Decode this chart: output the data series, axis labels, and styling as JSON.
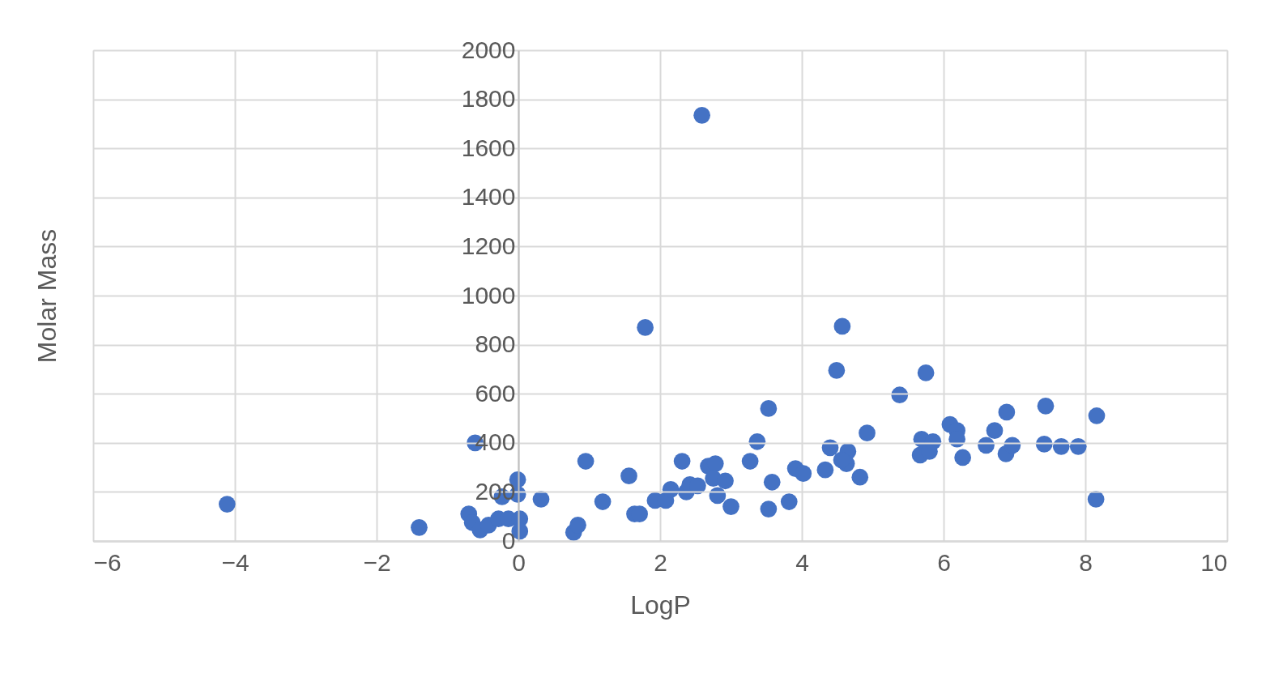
{
  "chart_data": {
    "type": "scatter",
    "xlabel": "LogP",
    "ylabel": "Molar Mass",
    "xlim": [
      -6,
      10
    ],
    "xticks": [
      -6,
      -4,
      -2,
      0,
      2,
      4,
      6,
      8,
      10
    ],
    "ylim": [
      0,
      2000
    ],
    "yticks": [
      0,
      200,
      400,
      600,
      800,
      1000,
      1200,
      1400,
      1600,
      1800,
      2000
    ],
    "grid": true,
    "marker": "circle",
    "legend": false,
    "series": [
      {
        "color": "#4472c4",
        "x": [
          -4.11,
          -1.4,
          -0.61,
          -0.7,
          -0.65,
          -0.54,
          -0.42,
          -0.23,
          -0.28,
          -0.14,
          -0.01,
          -0.01,
          0.02,
          0.02,
          0.32,
          0.78,
          0.84,
          0.95,
          1.19,
          1.56,
          1.64,
          1.71,
          1.79,
          1.93,
          2.08,
          2.15,
          2.31,
          2.37,
          2.42,
          2.59,
          2.53,
          2.68,
          2.78,
          2.75,
          2.81,
          2.92,
          3.0,
          3.27,
          3.37,
          3.53,
          3.58,
          3.53,
          3.82,
          3.91,
          4.02,
          4.33,
          4.4,
          4.49,
          4.57,
          4.65,
          4.63,
          4.56,
          4.82,
          4.92,
          5.38,
          5.75,
          5.69,
          5.67,
          5.8,
          5.85,
          6.09,
          6.19,
          6.19,
          6.27,
          6.6,
          6.72,
          6.89,
          6.88,
          6.97,
          7.42,
          7.44,
          7.66,
          7.9,
          8.16,
          8.15
        ],
        "values": [
          150,
          55,
          400,
          110,
          75,
          45,
          65,
          180,
          90,
          90,
          250,
          190,
          90,
          40,
          170,
          35,
          65,
          325,
          160,
          265,
          110,
          110,
          870,
          165,
          165,
          210,
          325,
          200,
          230,
          1735,
          225,
          305,
          315,
          255,
          185,
          245,
          140,
          325,
          405,
          540,
          240,
          130,
          160,
          295,
          275,
          290,
          380,
          695,
          875,
          365,
          315,
          330,
          260,
          440,
          595,
          685,
          415,
          350,
          365,
          405,
          475,
          450,
          415,
          340,
          390,
          450,
          525,
          355,
          390,
          395,
          550,
          385,
          385,
          510,
          170
        ]
      }
    ]
  }
}
